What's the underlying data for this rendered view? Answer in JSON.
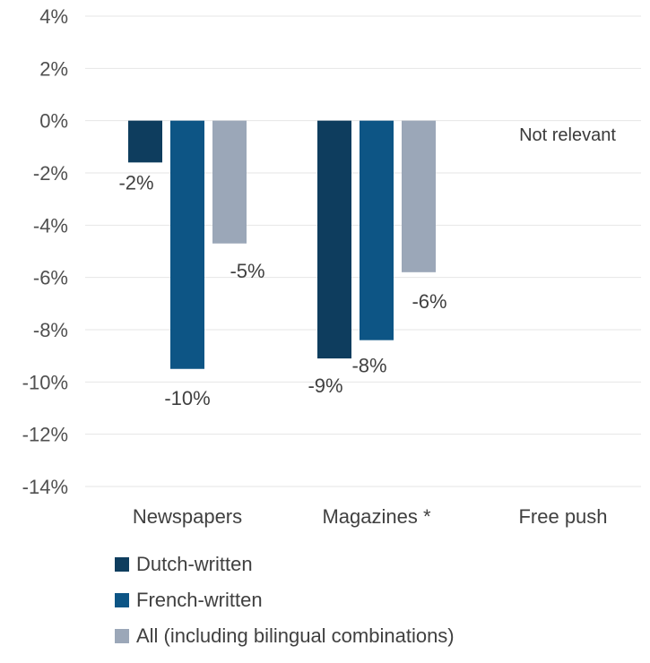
{
  "chart_data": {
    "type": "bar",
    "categories": [
      "Newspapers",
      "Magazines *",
      "Free push"
    ],
    "series": [
      {
        "name": "Dutch-written",
        "color": "#0e3d5e",
        "values": [
          -1.6,
          -9.1,
          null
        ],
        "labels": [
          "-2%",
          "-9%",
          ""
        ]
      },
      {
        "name": "French-written",
        "color": "#0d5585",
        "values": [
          -9.5,
          -8.4,
          null
        ],
        "labels": [
          "-10%",
          "-8%",
          ""
        ]
      },
      {
        "name": "All (including bilingual combinations)",
        "color": "#9ba7b8",
        "values": [
          -4.7,
          -5.8,
          null
        ],
        "labels": [
          "-5%",
          "-6%",
          ""
        ]
      }
    ],
    "ylim": [
      -14,
      4
    ],
    "yticks": [
      4,
      2,
      0,
      -2,
      -4,
      -6,
      -8,
      -10,
      -12,
      -14
    ],
    "ytick_labels": [
      "4%",
      "2%",
      "0%",
      "-2%",
      "-4%",
      "-6%",
      "-8%",
      "-10%",
      "-12%",
      "-14%"
    ],
    "annotation": "Not relevant",
    "grid": true,
    "legend_position": "bottom"
  }
}
